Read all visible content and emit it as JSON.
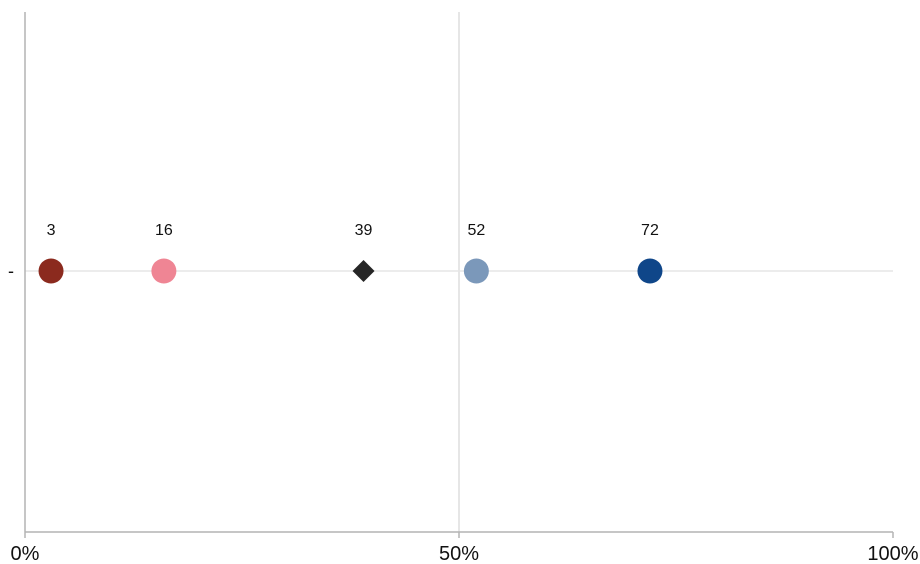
{
  "chart_data": {
    "type": "scatter",
    "xlim": [
      0,
      100
    ],
    "x_ticks": [
      {
        "value": 0,
        "label": "0%"
      },
      {
        "value": 50,
        "label": "50%"
      },
      {
        "value": 100,
        "label": "100%"
      }
    ],
    "categories": [
      "-"
    ],
    "grid": "vertical gridline at 50%",
    "points": [
      {
        "x": 3,
        "label": "3",
        "marker": "circle",
        "color": "#8B2A1E"
      },
      {
        "x": 16,
        "label": "16",
        "marker": "circle",
        "color": "#EF8594"
      },
      {
        "x": 39,
        "label": "39",
        "marker": "diamond",
        "color": "#262626"
      },
      {
        "x": 52,
        "label": "52",
        "marker": "circle",
        "color": "#7B98BA"
      },
      {
        "x": 72,
        "label": "72",
        "marker": "circle",
        "color": "#0F4689"
      }
    ],
    "colors": {
      "axis": "#b4b4b4",
      "gridline": "#d6d6d6",
      "row_line": "#e6e6e6"
    }
  }
}
